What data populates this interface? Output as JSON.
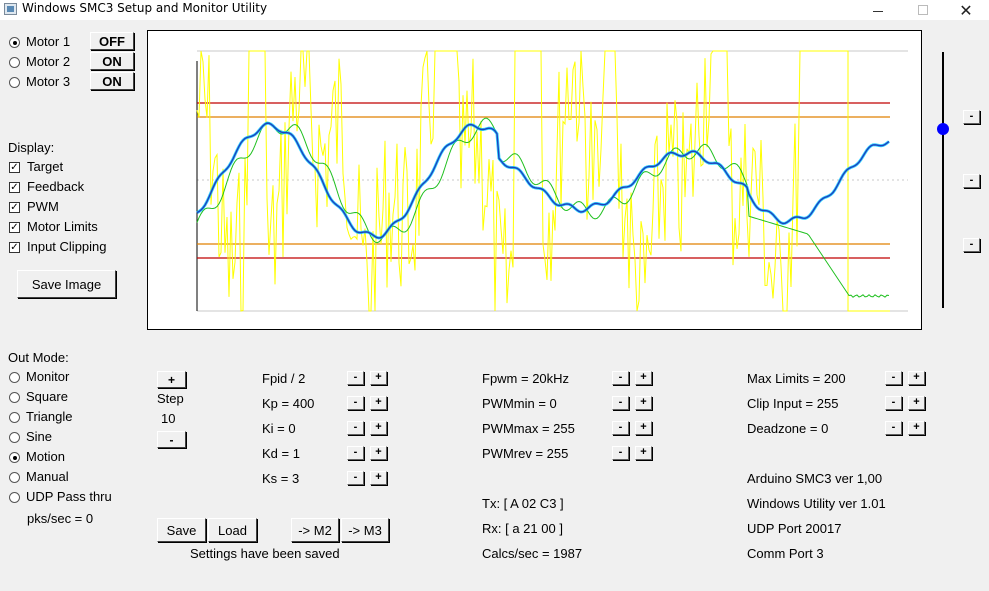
{
  "window": {
    "title": "Windows SMC3 Setup and Monitor Utility",
    "close_glyph": "✕"
  },
  "motors": [
    {
      "label": "Motor 1",
      "state": "OFF",
      "selected": true
    },
    {
      "label": "Motor 2",
      "state": "ON",
      "selected": false
    },
    {
      "label": "Motor 3",
      "state": "ON",
      "selected": false
    }
  ],
  "display": {
    "title": "Display:",
    "options": [
      {
        "label": "Target",
        "checked": true
      },
      {
        "label": "Feedback",
        "checked": true
      },
      {
        "label": "PWM",
        "checked": true
      },
      {
        "label": "Motor Limits",
        "checked": true
      },
      {
        "label": "Input Clipping",
        "checked": true
      }
    ],
    "save_image_label": "Save Image"
  },
  "out_mode": {
    "title": "Out Mode:",
    "options": [
      {
        "label": "Monitor",
        "selected": false
      },
      {
        "label": "Square",
        "selected": false
      },
      {
        "label": "Triangle",
        "selected": false
      },
      {
        "label": "Sine",
        "selected": false
      },
      {
        "label": "Motion",
        "selected": true
      },
      {
        "label": "Manual",
        "selected": false
      },
      {
        "label": "UDP Pass thru",
        "selected": false
      }
    ],
    "pks_sec": "pks/sec = 0"
  },
  "step": {
    "plus": "+",
    "label": "Step",
    "value": "10",
    "minus": "-"
  },
  "pid": {
    "fpid": "Fpid / 2",
    "kp": "Kp = 400",
    "ki": "Ki = 0",
    "kd": "Kd = 1",
    "ks": "Ks = 3"
  },
  "pwm": {
    "fpwm": "Fpwm = 20kHz",
    "pwm_min": "PWMmin = 0",
    "pwm_max": "PWMmax = 255",
    "pwm_rev": "PWMrev = 255"
  },
  "limits": {
    "max_limits": "Max Limits = 200",
    "clip_input": "Clip Input = 255",
    "deadzone": "Deadzone = 0"
  },
  "comm": {
    "tx": "Tx: [ A 02 C3 ]",
    "rx": "Rx: [ a 21 00 ]",
    "calcs": "Calcs/sec = 1987"
  },
  "info": {
    "arduino_ver": "Arduino SMC3 ver 1,00",
    "utility_ver": "Windows Utility ver 1.01",
    "udp_port": "UDP Port 20017",
    "comm_port": "Comm Port 3"
  },
  "actions": {
    "save": "Save",
    "load": "Load",
    "to_m2": "-> M2",
    "to_m3": "-> M3",
    "status": "Settings have been saved"
  },
  "buttons": {
    "minus": "-",
    "plus": "+"
  },
  "slider": {
    "value_fraction": 0.3
  },
  "plot": {
    "colors": {
      "target": "#1f3fbf",
      "target_glow": "#00c8ff",
      "feedback": "#20c020",
      "pwm": "#ffff00",
      "motor_limits": "#c00000",
      "input_clipping": "#e08000",
      "grid": "#c8c8c8"
    }
  }
}
